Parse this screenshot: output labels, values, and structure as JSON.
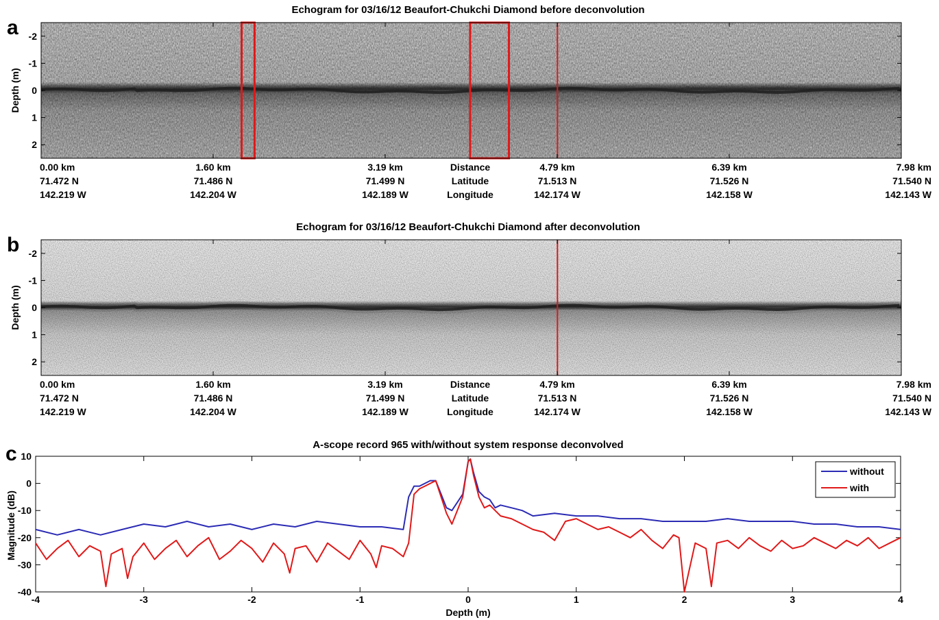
{
  "chart_data": [
    {
      "type": "heatmap",
      "panel_label": "a",
      "title": "Echogram for 03/16/12 Beaufort-Chukchi Diamond before deconvolution",
      "ylabel": "Depth (m)",
      "yticks": [
        "-2",
        "-1",
        "0",
        "1",
        "2"
      ],
      "ylim": [
        -2.5,
        2.5
      ],
      "x_axes": [
        {
          "label": "Distance",
          "ticks": [
            "0.00 km",
            "1.60 km",
            "3.19 km",
            "4.79 km",
            "6.39 km",
            "7.98 km"
          ]
        },
        {
          "label": "Latitude",
          "ticks": [
            "71.472 N",
            "71.486 N",
            "71.499 N",
            "71.513 N",
            "71.526 N",
            "71.540 N"
          ]
        },
        {
          "label": "Longitude",
          "ticks": [
            "142.219 W",
            "142.204 W",
            "142.189 W",
            "142.174 W",
            "142.158 W",
            "142.143 W"
          ]
        }
      ],
      "xlim_km": [
        0,
        7.98
      ],
      "surface_depth_m": 0,
      "marker_line_km": 4.79,
      "highlight_boxes_km": [
        [
          1.86,
          1.98
        ],
        [
          3.98,
          4.34
        ]
      ],
      "colormap": "grayscale"
    },
    {
      "type": "heatmap",
      "panel_label": "b",
      "title": "Echogram for 03/16/12 Beaufort-Chukchi Diamond after deconvolution",
      "ylabel": "Depth (m)",
      "yticks": [
        "-2",
        "-1",
        "0",
        "1",
        "2"
      ],
      "ylim": [
        -2.5,
        2.5
      ],
      "x_axes": [
        {
          "label": "Distance",
          "ticks": [
            "0.00 km",
            "1.60 km",
            "3.19 km",
            "4.79 km",
            "6.39 km",
            "7.98 km"
          ]
        },
        {
          "label": "Latitude",
          "ticks": [
            "71.472 N",
            "71.486 N",
            "71.499 N",
            "71.513 N",
            "71.526 N",
            "71.540 N"
          ]
        },
        {
          "label": "Longitude",
          "ticks": [
            "142.219 W",
            "142.204 W",
            "142.189 W",
            "142.174 W",
            "142.158 W",
            "142.143 W"
          ]
        }
      ],
      "xlim_km": [
        0,
        7.98
      ],
      "surface_depth_m": 0,
      "marker_line_km": 4.79,
      "colormap": "grayscale"
    },
    {
      "type": "line",
      "panel_label": "c",
      "title": "A-scope record 965 with/without system response deconvolved",
      "xlabel": "Depth (m)",
      "ylabel": "Magnitude (dB)",
      "xlim": [
        -4,
        4
      ],
      "ylim": [
        -40,
        10
      ],
      "xticks": [
        -4,
        -3,
        -2,
        -1,
        0,
        1,
        2,
        3,
        4
      ],
      "yticks": [
        10,
        0,
        -10,
        -20,
        -30,
        -40
      ],
      "legend_position": "top-right",
      "series": [
        {
          "name": "without",
          "color": "#2b2bb5",
          "x": [
            -4,
            -3.8,
            -3.6,
            -3.4,
            -3.2,
            -3.0,
            -2.8,
            -2.6,
            -2.4,
            -2.2,
            -2.0,
            -1.8,
            -1.6,
            -1.4,
            -1.2,
            -1.0,
            -0.8,
            -0.6,
            -0.55,
            -0.5,
            -0.45,
            -0.4,
            -0.35,
            -0.3,
            -0.25,
            -0.2,
            -0.15,
            -0.1,
            -0.05,
            0.0,
            0.02,
            0.05,
            0.1,
            0.15,
            0.2,
            0.25,
            0.3,
            0.4,
            0.5,
            0.6,
            0.8,
            1.0,
            1.2,
            1.4,
            1.6,
            1.8,
            2.0,
            2.2,
            2.4,
            2.6,
            2.8,
            3.0,
            3.2,
            3.4,
            3.6,
            3.8,
            4.0
          ],
          "values": [
            -17,
            -19,
            -17,
            -19,
            -17,
            -15,
            -16,
            -14,
            -16,
            -15,
            -17,
            -15,
            -16,
            -14,
            -15,
            -16,
            -16,
            -17,
            -5,
            -1,
            -1,
            0,
            1,
            1,
            -4,
            -9,
            -10,
            -7,
            -4,
            8,
            9,
            4,
            -3,
            -5,
            -6,
            -9,
            -8,
            -9,
            -10,
            -12,
            -11,
            -12,
            -12,
            -13,
            -13,
            -14,
            -14,
            -14,
            -13,
            -14,
            -14,
            -14,
            -15,
            -15,
            -16,
            -16,
            -17
          ]
        },
        {
          "name": "with",
          "color": "#e01818",
          "x": [
            -4,
            -3.9,
            -3.8,
            -3.7,
            -3.6,
            -3.5,
            -3.4,
            -3.35,
            -3.3,
            -3.2,
            -3.15,
            -3.1,
            -3.0,
            -2.9,
            -2.8,
            -2.7,
            -2.6,
            -2.5,
            -2.4,
            -2.3,
            -2.2,
            -2.1,
            -2.0,
            -1.9,
            -1.8,
            -1.7,
            -1.65,
            -1.6,
            -1.5,
            -1.4,
            -1.3,
            -1.2,
            -1.1,
            -1.0,
            -0.9,
            -0.85,
            -0.8,
            -0.7,
            -0.6,
            -0.55,
            -0.5,
            -0.45,
            -0.4,
            -0.35,
            -0.3,
            -0.25,
            -0.2,
            -0.15,
            -0.1,
            -0.05,
            0.0,
            0.02,
            0.05,
            0.1,
            0.15,
            0.2,
            0.3,
            0.4,
            0.5,
            0.6,
            0.7,
            0.8,
            0.9,
            1.0,
            1.1,
            1.2,
            1.3,
            1.4,
            1.5,
            1.6,
            1.7,
            1.8,
            1.9,
            1.95,
            2.0,
            2.1,
            2.2,
            2.25,
            2.3,
            2.4,
            2.5,
            2.6,
            2.7,
            2.8,
            2.9,
            3.0,
            3.1,
            3.2,
            3.3,
            3.4,
            3.5,
            3.6,
            3.7,
            3.8,
            3.9,
            4.0
          ],
          "values": [
            -22,
            -28,
            -24,
            -21,
            -27,
            -23,
            -25,
            -38,
            -26,
            -24,
            -35,
            -27,
            -22,
            -28,
            -24,
            -21,
            -27,
            -23,
            -20,
            -28,
            -25,
            -21,
            -24,
            -29,
            -22,
            -26,
            -33,
            -24,
            -23,
            -29,
            -22,
            -25,
            -28,
            -21,
            -26,
            -31,
            -23,
            -24,
            -27,
            -22,
            -4,
            -2,
            -1,
            0,
            1,
            -5,
            -11,
            -15,
            -10,
            -5,
            8,
            9,
            3,
            -5,
            -9,
            -8,
            -12,
            -13,
            -15,
            -17,
            -18,
            -21,
            -14,
            -13,
            -15,
            -17,
            -16,
            -18,
            -20,
            -17,
            -21,
            -24,
            -19,
            -20,
            -40,
            -22,
            -24,
            -38,
            -22,
            -21,
            -24,
            -20,
            -23,
            -25,
            -21,
            -24,
            -23,
            -20,
            -22,
            -24,
            -21,
            -23,
            -20,
            -24,
            -22,
            -20
          ]
        }
      ]
    }
  ]
}
